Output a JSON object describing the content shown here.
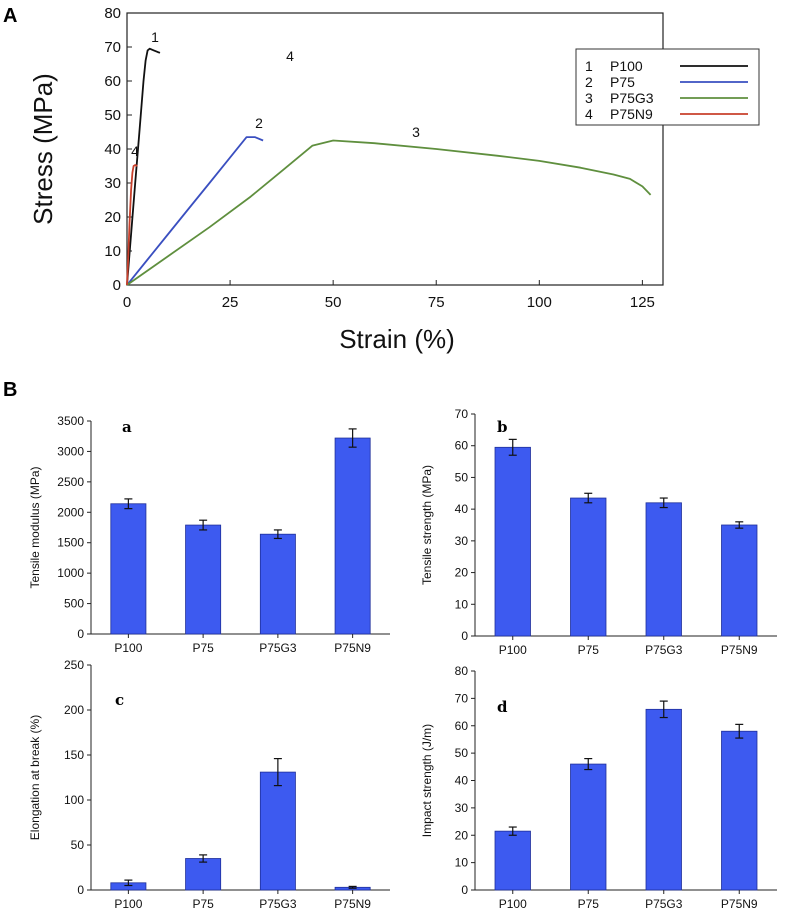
{
  "panels": {
    "A": "A",
    "B": "B"
  },
  "colors": {
    "P100": "#111111",
    "P75": "#3a4fc0",
    "P75G3": "#5f8f3e",
    "P75N9": "#c8402c",
    "bar_fill": "#3d5af0",
    "bar_edge": "#1f2f9a"
  },
  "chart_data": [
    {
      "id": "A",
      "type": "line",
      "xlabel": "Strain (%)",
      "ylabel": "Stress (MPa)",
      "xlim": [
        0,
        130
      ],
      "ylim": [
        0,
        80
      ],
      "xticks": [
        0,
        25,
        50,
        75,
        100,
        125
      ],
      "yticks": [
        0,
        10,
        20,
        30,
        40,
        50,
        60,
        70,
        80
      ],
      "legend": [
        {
          "num": "1",
          "name": "P100"
        },
        {
          "num": "2",
          "name": "P75"
        },
        {
          "num": "3",
          "name": "P75G3"
        },
        {
          "num": "4",
          "name": "P75N9"
        }
      ],
      "curve_labels": [
        "1",
        "2",
        "3",
        "4",
        "4"
      ],
      "series": [
        {
          "name": "P100",
          "x": [
            0,
            1,
            2,
            3,
            4,
            4.5,
            5,
            5.5,
            6.5,
            7.5,
            8
          ],
          "y": [
            0,
            15,
            30,
            45,
            60,
            66,
            69,
            69.5,
            69,
            68.5,
            68.3
          ]
        },
        {
          "name": "P75",
          "x": [
            0,
            5,
            10,
            15,
            20,
            24,
            27,
            29,
            31,
            33
          ],
          "y": [
            0,
            7.5,
            15,
            22.5,
            30,
            36,
            40.5,
            43.5,
            43.5,
            42.5
          ]
        },
        {
          "name": "P75G3",
          "x": [
            0,
            10,
            20,
            30,
            38,
            45,
            50,
            60,
            75,
            90,
            100,
            110,
            118,
            122,
            125,
            127
          ],
          "y": [
            0,
            8.5,
            17,
            26,
            34,
            41,
            42.5,
            41.7,
            40,
            38,
            36.5,
            34.5,
            32.5,
            31.2,
            29,
            26.5
          ]
        },
        {
          "name": "P75N9",
          "x": [
            0,
            0.3,
            0.6,
            1,
            1.3,
            1.6,
            2,
            2.5
          ],
          "y": [
            0,
            8,
            18,
            28,
            33,
            35,
            35.3,
            35
          ]
        }
      ]
    },
    {
      "id": "a",
      "type": "bar",
      "categories": [
        "P100",
        "P75",
        "P75G3",
        "P75N9"
      ],
      "values": [
        2140,
        1790,
        1640,
        3220
      ],
      "errors": [
        80,
        80,
        70,
        150
      ],
      "ylabel": "Tensile modulus (MPa)",
      "ylim": [
        0,
        3500
      ],
      "yticks": [
        0,
        500,
        1000,
        1500,
        2000,
        2500,
        3000,
        3500
      ]
    },
    {
      "id": "b",
      "type": "bar",
      "categories": [
        "P100",
        "P75",
        "P75G3",
        "P75N9"
      ],
      "values": [
        59.5,
        43.5,
        42,
        35
      ],
      "errors": [
        2.5,
        1.5,
        1.5,
        1
      ],
      "ylabel": "Tensile strength (MPa)",
      "ylim": [
        0,
        70
      ],
      "yticks": [
        0,
        10,
        20,
        30,
        40,
        50,
        60,
        70
      ]
    },
    {
      "id": "c",
      "type": "bar",
      "categories": [
        "P100",
        "P75",
        "P75G3",
        "P75N9"
      ],
      "values": [
        8,
        35,
        131,
        3
      ],
      "errors": [
        3,
        4,
        15,
        1
      ],
      "ylabel": "Elongation at break (%)",
      "ylim": [
        0,
        250
      ],
      "yticks": [
        0,
        50,
        100,
        150,
        200,
        250
      ]
    },
    {
      "id": "d",
      "type": "bar",
      "categories": [
        "P100",
        "P75",
        "P75G3",
        "P75N9"
      ],
      "values": [
        21.5,
        46,
        66,
        58
      ],
      "errors": [
        1.5,
        2,
        3,
        2.5
      ],
      "ylabel": "Impact strength (J/m)",
      "ylim": [
        0,
        80
      ],
      "yticks": [
        0,
        10,
        20,
        30,
        40,
        50,
        60,
        70,
        80
      ]
    }
  ]
}
